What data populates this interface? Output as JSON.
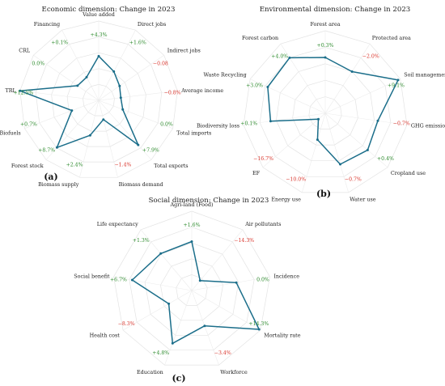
{
  "chart_data": [
    {
      "type": "radar",
      "title": "Economic dimension: Change in 2023",
      "panel": "(a)",
      "axes": [
        "Value added",
        "Direct jobs",
        "Indirect jobs",
        "Average income",
        "Total imports",
        "Total exports",
        "Biomass demand",
        "Biomass supply",
        "Forest stock",
        "Biofuels",
        "TRL",
        "CRL",
        "Financing"
      ],
      "value_labels": [
        "+4.3%",
        "+1.6%",
        "−0.08",
        "−0.8%",
        "0.0%",
        "+7.9%",
        "−1.4%",
        "+2.4%",
        "+8.7%",
        "+0.7%",
        "+12.5%",
        "0.0%",
        "+0.1%"
      ],
      "values": [
        4.3,
        1.6,
        -0.08,
        -0.8,
        0.0,
        7.9,
        -1.4,
        2.4,
        8.7,
        0.7,
        12.5,
        0.0,
        0.1
      ]
    },
    {
      "type": "radar",
      "title": "Environmental dimension: Change in 2023",
      "panel": "(b)",
      "axes": [
        "Forest area",
        "Protected area",
        "Soil management",
        "GHG emission",
        "Cropland use",
        "Water use",
        "Energy use",
        "EF",
        "Biodiversity loss",
        "Waste Recycling",
        "Forest carbon"
      ],
      "value_labels": [
        "+0.3%",
        "−2.0%",
        "+9.1%",
        "−0.7%",
        "+0.4%",
        "−0.7%",
        "−10.0%",
        "−16.7%",
        "+0.1%",
        "+3.0%",
        "+4.0%"
      ],
      "values": [
        0.3,
        -2.0,
        9.1,
        -0.7,
        0.4,
        -0.7,
        -10.0,
        -16.7,
        0.1,
        3.0,
        4.0
      ]
    },
    {
      "type": "radar",
      "title": "Social dimension: Change in 2023",
      "panel": "(c)",
      "axes": [
        "Agri-land (Food)",
        "Air pollutants",
        "Incidence",
        "Mortality rate",
        "Workforce",
        "Education",
        "Health cost",
        "Social benefit",
        "Life expectancy"
      ],
      "value_labels": [
        "+1.6%",
        "−14.3%",
        "0.0%",
        "+14.3%",
        "−3.4%",
        "+4.8%",
        "−8.3%",
        "+6.7%",
        "+1.3%"
      ],
      "values": [
        1.6,
        -14.3,
        0.0,
        14.3,
        -3.4,
        4.8,
        -8.3,
        6.7,
        1.3
      ]
    }
  ]
}
